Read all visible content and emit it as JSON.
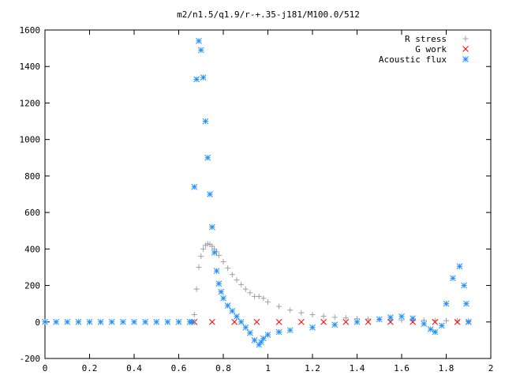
{
  "chart_data": {
    "type": "scatter",
    "title": "m2/n1.5/q1.9/r-+.35-j181/M100.0/512",
    "xlabel": "",
    "ylabel": "",
    "xlim": [
      0,
      2
    ],
    "ylim": [
      -200,
      1600
    ],
    "x_ticks": [
      "0",
      "0.2",
      "0.4",
      "0.6",
      "0.8",
      "1",
      "1.2",
      "1.4",
      "1.6",
      "1.8",
      "2"
    ],
    "y_ticks": [
      "-200",
      "0",
      "200",
      "400",
      "600",
      "800",
      "1000",
      "1200",
      "1400",
      "1600"
    ],
    "legend_position": "top-right",
    "grid": false,
    "series": [
      {
        "name": "R stress",
        "marker": "plus",
        "color": "#a0a0a0",
        "x": [
          0.67,
          0.68,
          0.69,
          0.7,
          0.71,
          0.72,
          0.73,
          0.74,
          0.75,
          0.76,
          0.77,
          0.78,
          0.8,
          0.82,
          0.84,
          0.86,
          0.88,
          0.9,
          0.92,
          0.94,
          0.96,
          0.98,
          1.0,
          1.05,
          1.1,
          1.15,
          1.2,
          1.25,
          1.3,
          1.35,
          1.4,
          1.45,
          1.5,
          1.55,
          1.6,
          1.65,
          1.7,
          1.75,
          1.8,
          1.85,
          1.9
        ],
        "values": [
          40,
          180,
          300,
          360,
          400,
          420,
          428,
          425,
          415,
          400,
          385,
          365,
          330,
          295,
          260,
          230,
          205,
          180,
          160,
          140,
          140,
          130,
          110,
          85,
          65,
          50,
          40,
          32,
          26,
          22,
          18,
          16,
          14,
          12,
          11,
          10,
          9,
          8,
          7,
          6,
          5
        ]
      },
      {
        "name": "G work",
        "marker": "cross",
        "color": "#ff0000",
        "x": [
          0.67,
          0.75,
          0.85,
          0.95,
          1.05,
          1.15,
          1.25,
          1.35,
          1.45,
          1.55,
          1.65,
          1.75,
          1.85,
          1.9
        ],
        "values": [
          0,
          0,
          0,
          0,
          0,
          0,
          0,
          0,
          0,
          0,
          0,
          0,
          0,
          0
        ]
      },
      {
        "name": "Acoustic flux",
        "marker": "asterisk",
        "color": "#1e90ff",
        "x": [
          0.0,
          0.05,
          0.1,
          0.15,
          0.2,
          0.25,
          0.3,
          0.35,
          0.4,
          0.45,
          0.5,
          0.55,
          0.6,
          0.65,
          0.66,
          0.67,
          0.68,
          0.69,
          0.7,
          0.71,
          0.72,
          0.73,
          0.74,
          0.75,
          0.76,
          0.77,
          0.78,
          0.79,
          0.8,
          0.82,
          0.84,
          0.86,
          0.88,
          0.9,
          0.92,
          0.94,
          0.96,
          0.97,
          0.98,
          1.0,
          1.05,
          1.1,
          1.2,
          1.3,
          1.4,
          1.5,
          1.55,
          1.6,
          1.65,
          1.7,
          1.73,
          1.75,
          1.78,
          1.8,
          1.83,
          1.86,
          1.88,
          1.89,
          1.9
        ],
        "values": [
          0,
          0,
          0,
          0,
          0,
          0,
          0,
          0,
          0,
          0,
          0,
          0,
          0,
          0,
          0,
          740,
          1330,
          1540,
          1490,
          1340,
          1100,
          900,
          700,
          520,
          380,
          280,
          210,
          165,
          130,
          90,
          60,
          30,
          0,
          -30,
          -60,
          -100,
          -125,
          -110,
          -90,
          -70,
          -55,
          -45,
          -30,
          -15,
          0,
          15,
          25,
          30,
          20,
          -10,
          -40,
          -55,
          -20,
          100,
          240,
          305,
          200,
          100,
          0
        ]
      }
    ]
  }
}
